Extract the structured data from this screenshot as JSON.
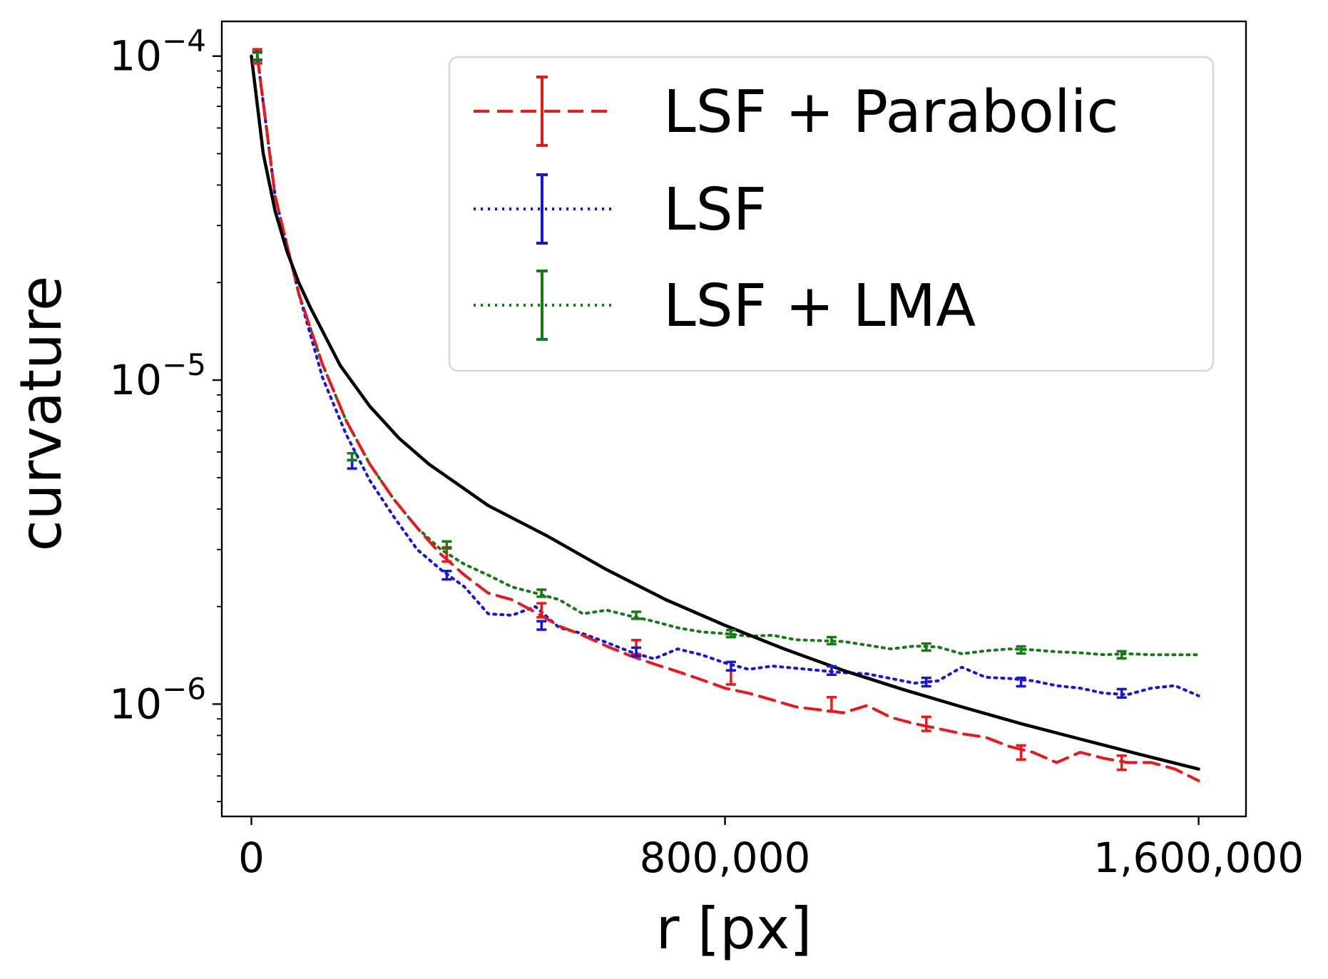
{
  "chart_data": {
    "type": "line",
    "title": "",
    "xlabel": "r [px]",
    "ylabel": "curvature",
    "xscale": "linear",
    "yscale": "log",
    "xlim": [
      -50000,
      1680000
    ],
    "ylim": [
      4.5e-07,
      0.000128
    ],
    "x_ticks": [
      {
        "value": 0,
        "label": "0"
      },
      {
        "value": 800000,
        "label": "800,000"
      },
      {
        "value": 1600000,
        "label": "1,600,000"
      }
    ],
    "y_ticks": [
      {
        "value": 1e-06,
        "label_base": "10",
        "label_exp": "−6"
      },
      {
        "value": 1e-05,
        "label_base": "10",
        "label_exp": "−5"
      },
      {
        "value": 0.0001,
        "label_base": "10",
        "label_exp": "−4"
      }
    ],
    "grid": false,
    "legend_position": "top-right",
    "reference": {
      "name": "",
      "color": "#000000",
      "style": "solid",
      "x": [
        0,
        20000,
        40000,
        60000,
        80000,
        100000,
        150000,
        200000,
        250000,
        300000,
        400000,
        500000,
        600000,
        700000,
        800000,
        900000,
        1000000,
        1100000,
        1200000,
        1300000,
        1400000,
        1500000,
        1600000
      ],
      "y": [
        0.0001,
        5e-05,
        3.33e-05,
        2.5e-05,
        2e-05,
        1.67e-05,
        1.11e-05,
        8.3e-06,
        6.6e-06,
        5.5e-06,
        4.1e-06,
        3.3e-06,
        2.6e-06,
        2.1e-06,
        1.75e-06,
        1.48e-06,
        1.27e-06,
        1.11e-06,
        9.8e-07,
        8.7e-07,
        7.8e-07,
        7e-07,
        6.3e-07
      ]
    },
    "series": [
      {
        "name": "LSF + Parabolic",
        "color": "#e8181b",
        "style": "dashed",
        "x": [
          10000,
          40000,
          80000,
          120000,
          160000,
          200000,
          240000,
          280000,
          320000,
          360000,
          400000,
          440000,
          480000,
          520000,
          560000,
          600000,
          640000,
          680000,
          720000,
          760000,
          800000,
          840000,
          880000,
          920000,
          960000,
          1000000,
          1040000,
          1080000,
          1120000,
          1160000,
          1200000,
          1240000,
          1280000,
          1320000,
          1360000,
          1400000,
          1440000,
          1480000,
          1520000,
          1560000,
          1600000
        ],
        "y": [
          0.0001,
          3.7e-05,
          1.85e-05,
          1.12e-05,
          7.5e-06,
          5.5e-06,
          4.3e-06,
          3.5e-06,
          2.9e-06,
          2.5e-06,
          2.2e-06,
          2.1e-06,
          1.92e-06,
          1.74e-06,
          1.63e-06,
          1.51e-06,
          1.41e-06,
          1.33e-06,
          1.26e-06,
          1.19e-06,
          1.12e-06,
          1.08e-06,
          1.03e-06,
          9.8e-07,
          9.6e-07,
          9.4e-07,
          9.9e-07,
          9.1e-07,
          8.7e-07,
          8.4e-07,
          8.1e-07,
          7.9e-07,
          7.4e-07,
          7.1e-07,
          6.6e-07,
          7.1e-07,
          6.8e-07,
          6.6e-07,
          6.6e-07,
          6.3e-07,
          5.8e-07
        ],
        "err_x": [
          10000,
          330000,
          490000,
          650000,
          810000,
          980000,
          1140000,
          1300000,
          1470000
        ],
        "err_y": [
          0.0001,
          2.9e-06,
          1.95e-06,
          1.5e-06,
          1.21e-06,
          1e-06,
          8.7e-07,
          7.1e-07,
          6.6e-07
        ],
        "err_frac": 0.05
      },
      {
        "name": "LSF",
        "color": "#1515e0",
        "style": "dotted",
        "x": [
          10000,
          40000,
          80000,
          120000,
          160000,
          200000,
          240000,
          280000,
          320000,
          360000,
          400000,
          440000,
          480000,
          520000,
          560000,
          600000,
          640000,
          680000,
          720000,
          760000,
          800000,
          840000,
          880000,
          920000,
          960000,
          1000000,
          1040000,
          1080000,
          1120000,
          1160000,
          1200000,
          1240000,
          1280000,
          1320000,
          1360000,
          1400000,
          1440000,
          1480000,
          1520000,
          1560000,
          1600000
        ],
        "y": [
          0.0001,
          3.7e-05,
          1.85e-05,
          1.02e-05,
          6.8e-06,
          4.9e-06,
          3.8e-06,
          3e-06,
          2.6e-06,
          2.3e-06,
          1.9e-06,
          1.88e-06,
          2e-06,
          1.72e-06,
          1.65e-06,
          1.55e-06,
          1.45e-06,
          1.38e-06,
          1.48e-06,
          1.42e-06,
          1.34e-06,
          1.28e-06,
          1.31e-06,
          1.29e-06,
          1.27e-06,
          1.25e-06,
          1.24e-06,
          1.2e-06,
          1.16e-06,
          1.18e-06,
          1.3e-06,
          1.21e-06,
          1.2e-06,
          1.18e-06,
          1.14e-06,
          1.12e-06,
          1.08e-06,
          1.07e-06,
          1.12e-06,
          1.14e-06,
          1.06e-06
        ],
        "err_x": [
          10000,
          170000,
          330000,
          490000,
          650000,
          810000,
          980000,
          1140000,
          1300000,
          1470000
        ],
        "err_y": [
          0.0001,
          5.5e-06,
          2.5e-06,
          1.75e-06,
          1.45e-06,
          1.31e-06,
          1.27e-06,
          1.17e-06,
          1.17e-06,
          1.08e-06
        ],
        "err_frac": 0.03
      },
      {
        "name": "LSF + LMA",
        "color": "#157a15",
        "style": "dotted",
        "x": [
          10000,
          40000,
          80000,
          120000,
          160000,
          200000,
          240000,
          280000,
          320000,
          360000,
          400000,
          440000,
          480000,
          520000,
          560000,
          600000,
          640000,
          680000,
          720000,
          760000,
          800000,
          840000,
          880000,
          920000,
          960000,
          1000000,
          1040000,
          1080000,
          1120000,
          1160000,
          1200000,
          1240000,
          1280000,
          1320000,
          1360000,
          1400000,
          1440000,
          1480000,
          1520000,
          1560000,
          1600000
        ],
        "y": [
          0.0001,
          3.7e-05,
          1.85e-05,
          1.12e-05,
          7.5e-06,
          5.5e-06,
          4.3e-06,
          3.5e-06,
          3e-06,
          2.7e-06,
          2.5e-06,
          2.3e-06,
          2.2e-06,
          2.1e-06,
          1.9e-06,
          1.95e-06,
          1.87e-06,
          1.8e-06,
          1.72e-06,
          1.67e-06,
          1.65e-06,
          1.62e-06,
          1.63e-06,
          1.58e-06,
          1.57e-06,
          1.56e-06,
          1.52e-06,
          1.48e-06,
          1.51e-06,
          1.5e-06,
          1.43e-06,
          1.46e-06,
          1.48e-06,
          1.47e-06,
          1.45e-06,
          1.44e-06,
          1.42e-06,
          1.43e-06,
          1.42e-06,
          1.42e-06,
          1.42e-06
        ],
        "err_x": [
          10000,
          170000,
          330000,
          490000,
          650000,
          810000,
          980000,
          1140000,
          1300000,
          1470000
        ],
        "err_y": [
          0.0001,
          5.8e-06,
          3.1e-06,
          2.2e-06,
          1.88e-06,
          1.65e-06,
          1.57e-06,
          1.5e-06,
          1.47e-06,
          1.42e-06
        ],
        "err_frac": 0.025
      }
    ]
  }
}
